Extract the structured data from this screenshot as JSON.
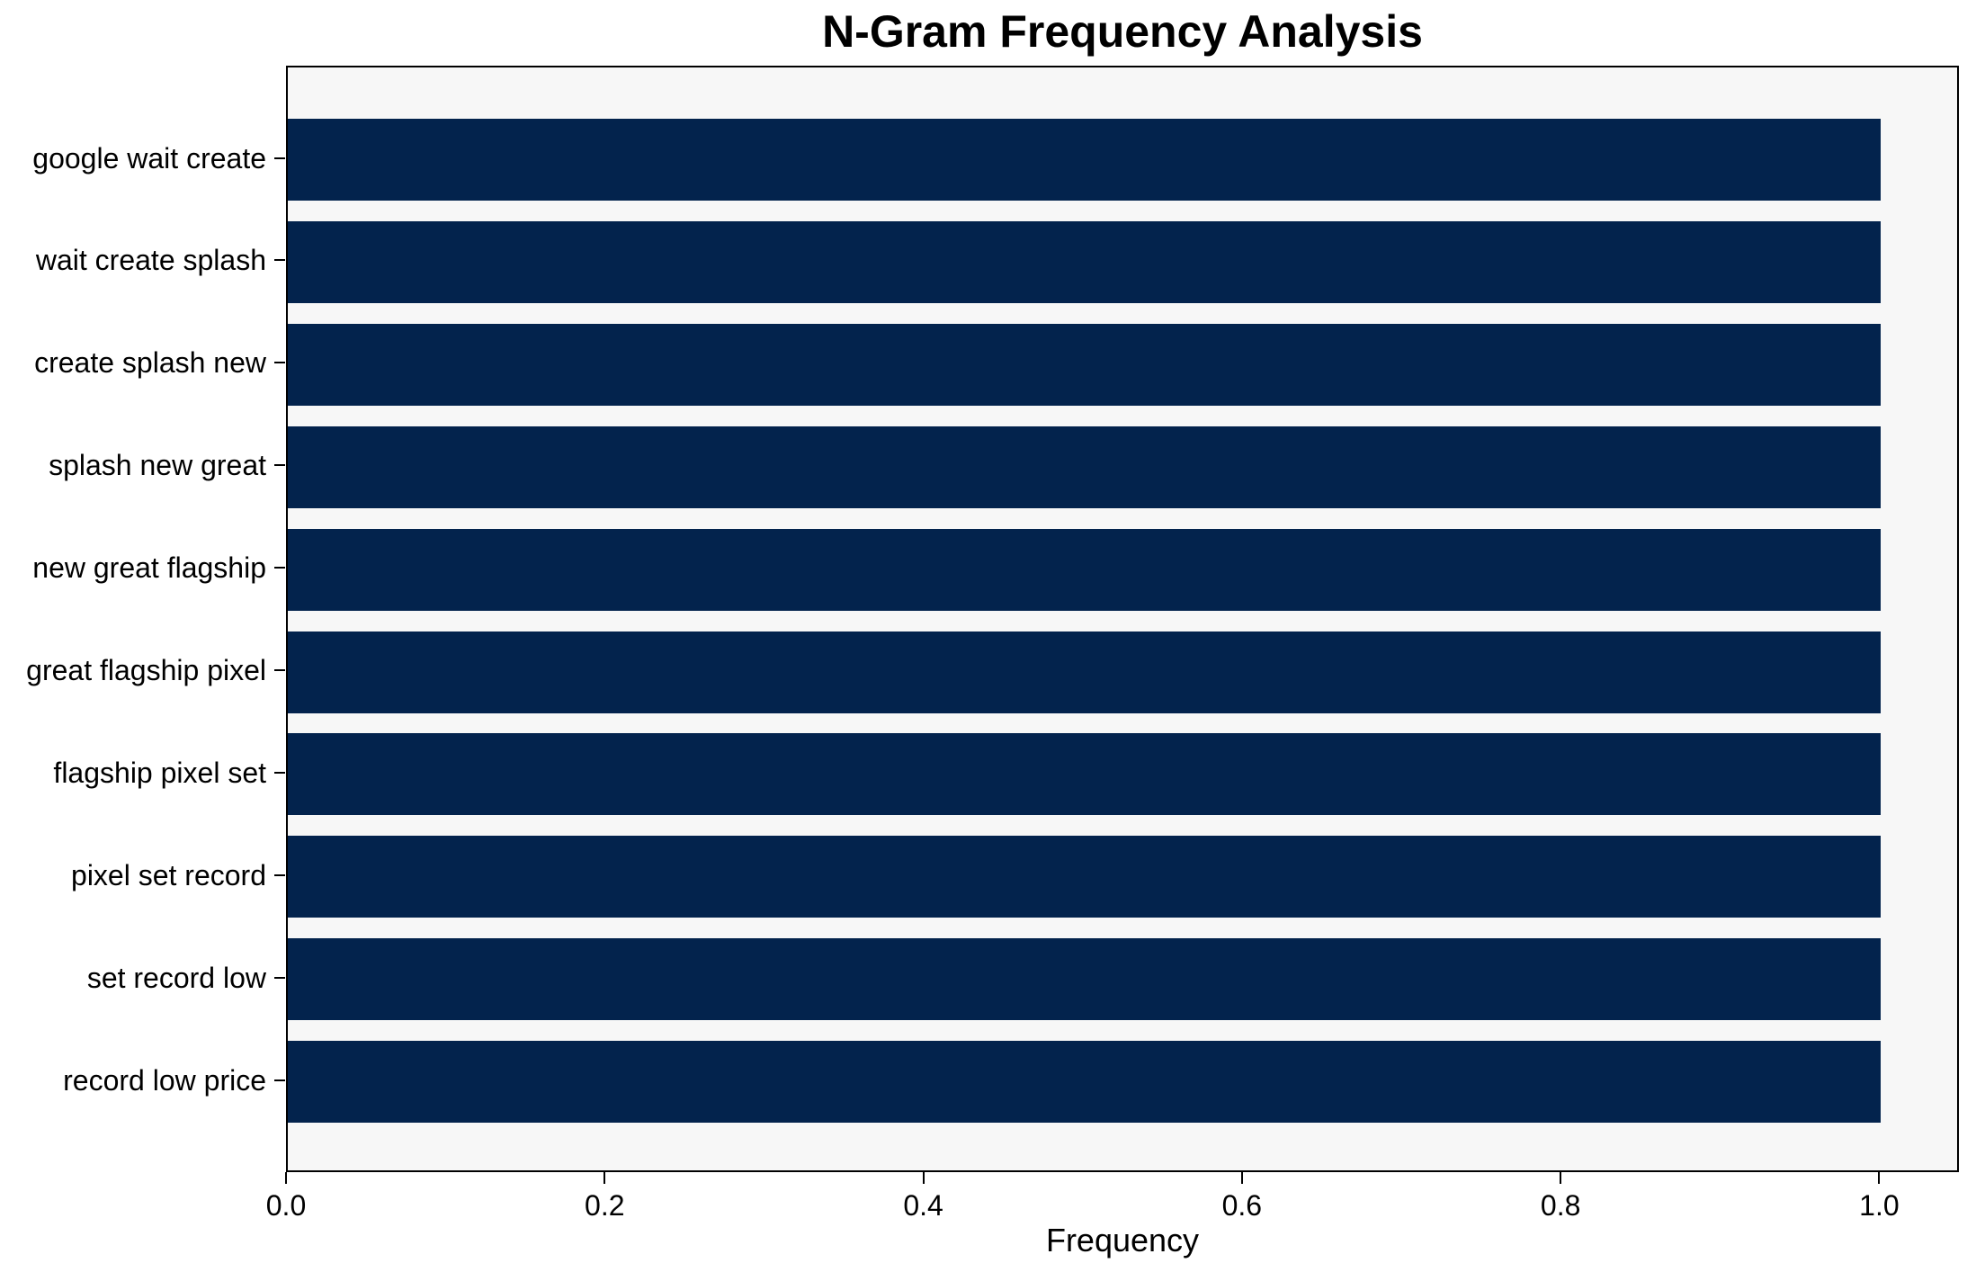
{
  "chart_data": {
    "type": "bar",
    "orientation": "horizontal",
    "title": "N-Gram Frequency Analysis",
    "xlabel": "Frequency",
    "ylabel": "",
    "categories": [
      "google wait create",
      "wait create splash",
      "create splash new",
      "splash new great",
      "new great flagship",
      "great flagship pixel",
      "flagship pixel set",
      "pixel set record",
      "set record low",
      "record low price"
    ],
    "values": [
      1.0,
      1.0,
      1.0,
      1.0,
      1.0,
      1.0,
      1.0,
      1.0,
      1.0,
      1.0
    ],
    "xlim": [
      0,
      1.05
    ],
    "xticks": [
      0.0,
      0.2,
      0.4,
      0.6,
      0.8,
      1.0
    ],
    "xtick_labels": [
      "0.0",
      "0.2",
      "0.4",
      "0.6",
      "0.8",
      "1.0"
    ],
    "grid": false,
    "legend": null,
    "colors": {
      "bar": "#03234d",
      "plot_background": "#f7f7f7",
      "figure_background": "#ffffff",
      "axis": "#000000",
      "text": "#000000"
    }
  }
}
